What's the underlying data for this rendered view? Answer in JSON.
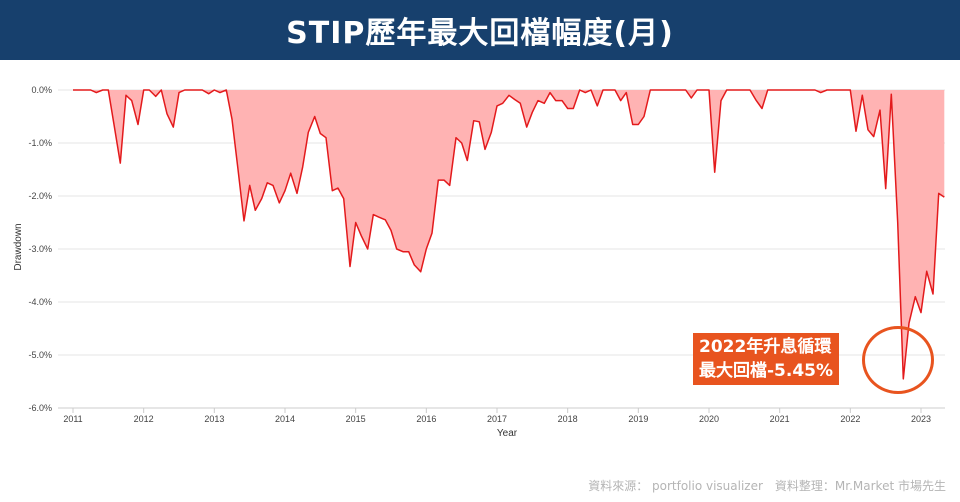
{
  "header": {
    "title": "STIP歷年最大回檔幅度(月)"
  },
  "chart_data": {
    "type": "area",
    "title": "STIP歷年最大回檔幅度(月)",
    "xlabel": "Year",
    "ylabel": "Drawdown",
    "xlim": [
      2011.0,
      2023.4
    ],
    "ylim": [
      -6.0,
      0.0
    ],
    "xticks": [
      "2011",
      "2012",
      "2013",
      "2014",
      "2015",
      "2016",
      "2017",
      "2018",
      "2019",
      "2020",
      "2021",
      "2022",
      "2023"
    ],
    "yticks": [
      "0.0%",
      "-1.0%",
      "-2.0%",
      "-3.0%",
      "-4.0%",
      "-5.0%",
      "-6.0%"
    ],
    "grid": "horizontal",
    "series": [
      {
        "color": "#e31a1c",
        "fill": "#ffb3b3",
        "x": [
          2011.0,
          2011.08,
          2011.17,
          2011.25,
          2011.33,
          2011.42,
          2011.5,
          2011.58,
          2011.67,
          2011.75,
          2011.83,
          2011.92,
          2012.0,
          2012.08,
          2012.17,
          2012.25,
          2012.33,
          2012.42,
          2012.5,
          2012.58,
          2012.67,
          2012.75,
          2012.83,
          2012.92,
          2013.0,
          2013.08,
          2013.17,
          2013.25,
          2013.33,
          2013.42,
          2013.5,
          2013.58,
          2013.67,
          2013.75,
          2013.83,
          2013.92,
          2014.0,
          2014.08,
          2014.17,
          2014.25,
          2014.33,
          2014.42,
          2014.5,
          2014.58,
          2014.67,
          2014.75,
          2014.83,
          2014.92,
          2015.0,
          2015.08,
          2015.17,
          2015.25,
          2015.33,
          2015.42,
          2015.5,
          2015.58,
          2015.67,
          2015.75,
          2015.83,
          2015.92,
          2016.0,
          2016.08,
          2016.17,
          2016.25,
          2016.33,
          2016.42,
          2016.5,
          2016.58,
          2016.67,
          2016.75,
          2016.83,
          2016.92,
          2017.0,
          2017.08,
          2017.17,
          2017.25,
          2017.33,
          2017.42,
          2017.5,
          2017.58,
          2017.67,
          2017.75,
          2017.83,
          2017.92,
          2018.0,
          2018.08,
          2018.17,
          2018.25,
          2018.33,
          2018.42,
          2018.5,
          2018.58,
          2018.67,
          2018.75,
          2018.83,
          2018.92,
          2019.0,
          2019.08,
          2019.17,
          2019.25,
          2019.33,
          2019.42,
          2019.5,
          2019.58,
          2019.67,
          2019.75,
          2019.83,
          2019.92,
          2020.0,
          2020.08,
          2020.17,
          2020.25,
          2020.33,
          2020.42,
          2020.5,
          2020.58,
          2020.67,
          2020.75,
          2020.83,
          2020.92,
          2021.0,
          2021.08,
          2021.17,
          2021.25,
          2021.33,
          2021.42,
          2021.5,
          2021.58,
          2021.67,
          2021.75,
          2021.83,
          2021.92,
          2022.0,
          2022.08,
          2022.17,
          2022.25,
          2022.33,
          2022.42,
          2022.5,
          2022.58,
          2022.67,
          2022.75,
          2022.83,
          2022.92,
          2023.0,
          2023.08,
          2023.17,
          2023.25,
          2023.33
        ],
        "y": [
          0.0,
          0.0,
          0.0,
          0.0,
          -0.05,
          0.0,
          0.0,
          -0.65,
          -1.38,
          -0.1,
          -0.2,
          -0.65,
          0.0,
          0.0,
          -0.12,
          0.0,
          -0.45,
          -0.7,
          -0.05,
          0.0,
          0.0,
          0.0,
          0.0,
          -0.07,
          0.0,
          -0.05,
          0.0,
          -0.55,
          -1.45,
          -2.47,
          -1.8,
          -2.27,
          -2.05,
          -1.75,
          -1.8,
          -2.13,
          -1.9,
          -1.57,
          -1.95,
          -1.45,
          -0.8,
          -0.5,
          -0.82,
          -0.9,
          -1.9,
          -1.85,
          -2.05,
          -3.33,
          -2.5,
          -2.75,
          -3.0,
          -2.35,
          -2.4,
          -2.45,
          -2.65,
          -3.0,
          -3.05,
          -3.05,
          -3.3,
          -3.43,
          -3.0,
          -2.7,
          -1.7,
          -1.7,
          -1.8,
          -0.9,
          -1.0,
          -1.33,
          -0.58,
          -0.6,
          -1.12,
          -0.8,
          -0.3,
          -0.25,
          -0.1,
          -0.18,
          -0.25,
          -0.7,
          -0.42,
          -0.2,
          -0.25,
          -0.05,
          -0.2,
          -0.2,
          -0.35,
          -0.35,
          0.0,
          -0.05,
          0.0,
          -0.3,
          0.0,
          0.0,
          0.0,
          -0.2,
          -0.05,
          -0.65,
          -0.65,
          -0.5,
          0.0,
          0.0,
          0.0,
          0.0,
          0.0,
          0.0,
          0.0,
          -0.15,
          0.0,
          0.0,
          0.0,
          -1.55,
          -0.2,
          0.0,
          0.0,
          0.0,
          0.0,
          0.0,
          -0.2,
          -0.35,
          0.0,
          0.0,
          0.0,
          0.0,
          0.0,
          0.0,
          0.0,
          0.0,
          0.0,
          -0.05,
          0.0,
          0.0,
          0.0,
          0.0,
          0.0,
          -0.78,
          -0.1,
          -0.75,
          -0.88,
          -0.38,
          -1.86,
          -0.08,
          -2.5,
          -5.45,
          -4.4,
          -3.9,
          -4.2,
          -3.42,
          -3.85,
          -1.95,
          -2.02
        ]
      }
    ]
  },
  "callout": {
    "line1": "2022年升息循環",
    "line2": "最大回檔-5.45%"
  },
  "footer": {
    "credit": "資料來源： portfolio visualizer　資料整理：Mr.Market 市場先生"
  }
}
